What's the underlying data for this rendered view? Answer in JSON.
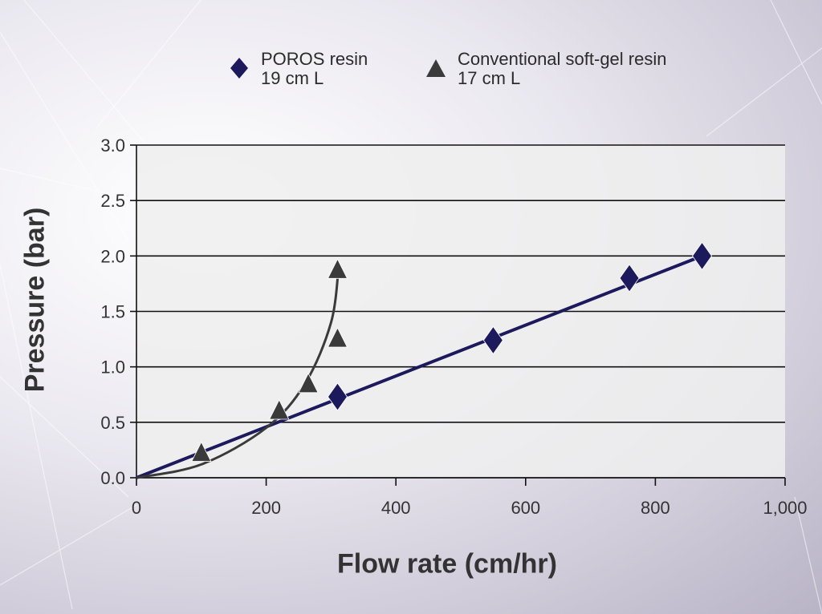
{
  "chart_data": {
    "type": "scatter",
    "title": "",
    "xlabel": "Flow rate (cm/hr)",
    "ylabel": "Pressure (bar)",
    "xlim": [
      0,
      1000
    ],
    "ylim": [
      0,
      3.0
    ],
    "x_ticks": [
      "0",
      "200",
      "400",
      "600",
      "800",
      "1,000"
    ],
    "y_ticks": [
      "0.0",
      "0.5",
      "1.0",
      "1.5",
      "2.0",
      "2.5",
      "3.0"
    ],
    "grid": "horizontal",
    "legend_position": "top",
    "series": [
      {
        "name": "POROS resin",
        "detail": "19 cm L",
        "marker": "diamond",
        "color": "#1c1a5c",
        "points": [
          {
            "x": 310,
            "y": 0.73
          },
          {
            "x": 550,
            "y": 1.24
          },
          {
            "x": 760,
            "y": 1.8
          },
          {
            "x": 872,
            "y": 2.0
          }
        ],
        "fit": {
          "kind": "linear",
          "from": [
            0,
            0
          ],
          "to": [
            872,
            2.0
          ]
        }
      },
      {
        "name": "Conventional soft-gel resin",
        "detail": "17 cm L",
        "marker": "triangle",
        "color": "#3a3a3a",
        "points": [
          {
            "x": 100,
            "y": 0.22
          },
          {
            "x": 220,
            "y": 0.6
          },
          {
            "x": 265,
            "y": 0.84
          },
          {
            "x": 310,
            "y": 1.25
          },
          {
            "x": 310,
            "y": 1.87
          }
        ],
        "fit": {
          "kind": "curve",
          "points": [
            [
              0,
              0
            ],
            [
              100,
              0.12
            ],
            [
              200,
              0.45
            ],
            [
              260,
              0.85
            ],
            [
              300,
              1.4
            ],
            [
              312,
              1.92
            ]
          ]
        }
      }
    ]
  },
  "colors": {
    "plot_bg": "#eeeeee",
    "grid": "#111111",
    "axis_text": "#333333"
  }
}
